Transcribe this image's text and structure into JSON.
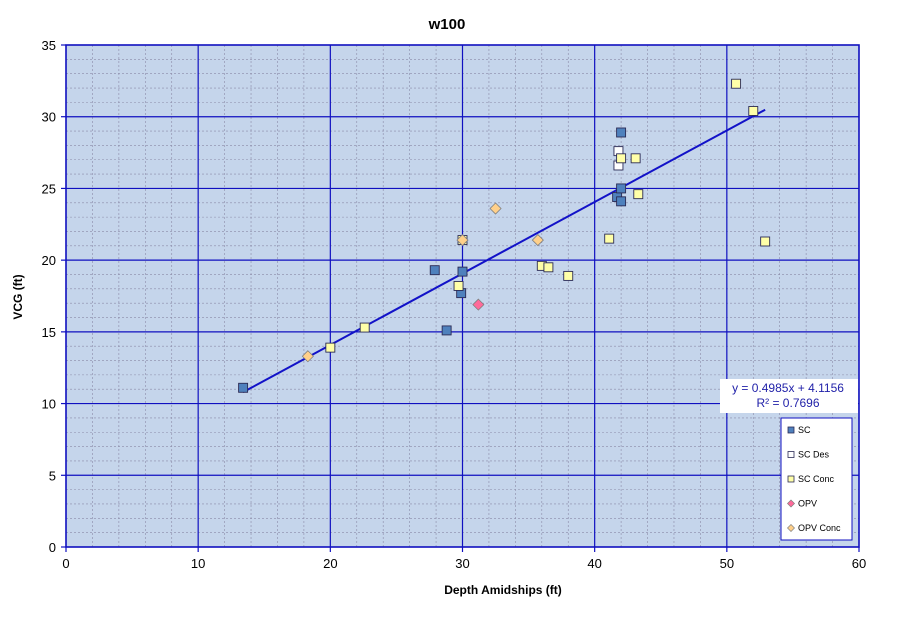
{
  "chart_data": {
    "type": "scatter",
    "title": "w100",
    "xlabel": "Depth Amidships  (ft)",
    "ylabel": "VCG (ft)",
    "xlim": [
      0,
      60
    ],
    "ylim": [
      0,
      35
    ],
    "x_ticks": [
      "0",
      "10",
      "20",
      "30",
      "40",
      "50",
      "60"
    ],
    "y_ticks": [
      "0",
      "5",
      "10",
      "15",
      "20",
      "25",
      "30",
      "35"
    ],
    "x_tick_values": [
      0,
      10,
      20,
      30,
      40,
      50,
      60
    ],
    "y_tick_values": [
      0,
      5,
      10,
      15,
      20,
      25,
      30,
      35
    ],
    "grid": {
      "major": true,
      "minor": true
    },
    "plot_background": "#c5d5eb",
    "major_grid_color": "#1010c0",
    "legend_position": "bottom-right",
    "series": [
      {
        "name": "SC",
        "marker": "square",
        "color": "#4f81bd",
        "points": [
          [
            13.4,
            11.1
          ],
          [
            27.9,
            19.3
          ],
          [
            28.8,
            15.1
          ],
          [
            29.9,
            17.7
          ],
          [
            30.0,
            19.2
          ],
          [
            41.7,
            24.4
          ],
          [
            42.0,
            24.1
          ],
          [
            42.0,
            25.0
          ],
          [
            42.0,
            28.9
          ]
        ]
      },
      {
        "name": "SC Des",
        "marker": "square",
        "color": "#ffffff",
        "points": [
          [
            41.8,
            26.6
          ],
          [
            41.8,
            27.6
          ]
        ]
      },
      {
        "name": "SC Conc",
        "marker": "square",
        "color": "#ffffa8",
        "points": [
          [
            20.0,
            13.9
          ],
          [
            22.6,
            15.3
          ],
          [
            29.7,
            18.2
          ],
          [
            30.0,
            21.4
          ],
          [
            36.0,
            19.6
          ],
          [
            36.5,
            19.5
          ],
          [
            38.0,
            18.9
          ],
          [
            41.1,
            21.5
          ],
          [
            42.0,
            27.1
          ],
          [
            43.1,
            27.1
          ],
          [
            43.3,
            24.6
          ],
          [
            50.7,
            32.3
          ],
          [
            52.0,
            30.4
          ],
          [
            52.9,
            21.3
          ]
        ]
      },
      {
        "name": "OPV",
        "marker": "diamond",
        "color": "#ff6a9a",
        "points": [
          [
            31.2,
            16.9
          ]
        ]
      },
      {
        "name": "OPV Conc",
        "marker": "diamond",
        "color": "#ffd08a",
        "points": [
          [
            18.3,
            13.3
          ],
          [
            30.0,
            21.4
          ],
          [
            32.5,
            23.6
          ],
          [
            35.7,
            21.4
          ]
        ]
      }
    ],
    "trendline": {
      "x": [
        13.4,
        52.9
      ],
      "slope": 0.4985,
      "intercept": 4.1156,
      "color": "#1212c8",
      "equation": "y = 0.4985x + 4.1156",
      "r_squared": "R² = 0.7696"
    }
  }
}
